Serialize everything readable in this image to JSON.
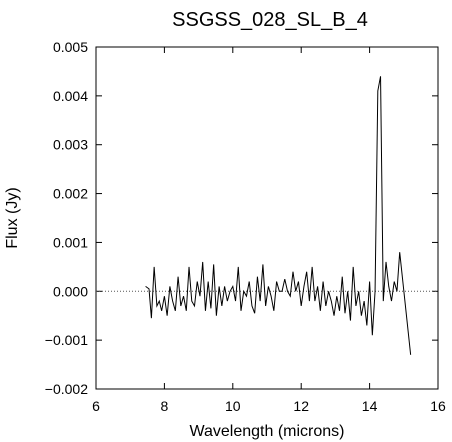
{
  "chart_data": {
    "type": "line",
    "title": "SSGSS_028_SL_B_4",
    "xlabel": "Wavelength (microns)",
    "ylabel": "Flux (Jy)",
    "xlim": [
      6,
      16
    ],
    "ylim": [
      -0.002,
      0.005
    ],
    "xticks": [
      6,
      8,
      10,
      12,
      14,
      16
    ],
    "xtick_labels": [
      "6",
      "8",
      "10",
      "12",
      "14",
      "16"
    ],
    "yticks": [
      -0.002,
      -0.001,
      0.0,
      0.001,
      0.002,
      0.003,
      0.004,
      0.005
    ],
    "ytick_labels": [
      "−0.002",
      "−0.001",
      "0.000",
      "0.001",
      "0.002",
      "0.003",
      "0.004",
      "0.005"
    ],
    "zero_line": {
      "y": 0.0,
      "style": "dotted"
    },
    "grid": false,
    "series": [
      {
        "x": [
          7.45,
          7.55,
          7.62,
          7.7,
          7.78,
          7.85,
          7.92,
          8.0,
          8.08,
          8.16,
          8.24,
          8.32,
          8.4,
          8.48,
          8.56,
          8.64,
          8.72,
          8.8,
          8.88,
          8.96,
          9.04,
          9.12,
          9.2,
          9.28,
          9.36,
          9.44,
          9.52,
          9.6,
          9.68,
          9.76,
          9.84,
          9.92,
          10.0,
          10.08,
          10.16,
          10.24,
          10.32,
          10.4,
          10.48,
          10.56,
          10.64,
          10.72,
          10.8,
          10.88,
          10.96,
          11.04,
          11.12,
          11.2,
          11.28,
          11.36,
          11.44,
          11.52,
          11.6,
          11.68,
          11.76,
          11.84,
          11.92,
          12.0,
          12.08,
          12.16,
          12.24,
          12.32,
          12.4,
          12.48,
          12.56,
          12.64,
          12.72,
          12.8,
          12.88,
          12.96,
          13.04,
          13.12,
          13.2,
          13.28,
          13.36,
          13.44,
          13.52,
          13.6,
          13.68,
          13.76,
          13.84,
          13.92,
          14.0,
          14.08,
          14.16,
          14.24,
          14.32,
          14.4,
          14.48,
          14.56,
          14.64,
          14.72,
          14.8,
          14.88,
          15.2
        ],
        "y": [
          0.0001,
          5e-05,
          -0.00055,
          0.0005,
          -0.0003,
          -0.0002,
          -0.0004,
          -0.0001,
          -0.0005,
          0.0001,
          -0.0002,
          -0.0004,
          0.0003,
          -0.0003,
          -0.0001,
          -0.0004,
          0.0005,
          -0.0002,
          -0.0003,
          0.0002,
          -0.0001,
          0.0006,
          -0.0004,
          0.0002,
          -0.00035,
          0.00055,
          -0.0005,
          0.0001,
          -0.0003,
          0.0001,
          -0.0002,
          0.0,
          0.0001,
          -0.0002,
          0.0005,
          -0.0004,
          0.0,
          -0.0001,
          0.0002,
          -0.0003,
          -0.00045,
          0.0003,
          -0.0002,
          0.00055,
          -0.0003,
          0.0001,
          -0.0001,
          -0.0004,
          0.0002,
          0.0,
          0.0,
          0.00025,
          0.0,
          -0.0001,
          0.0004,
          0.0,
          0.0002,
          -0.0003,
          0.0001,
          0.0004,
          -0.0002,
          0.0005,
          -0.0002,
          0.0001,
          -0.0004,
          0.0002,
          -0.0003,
          0.0,
          -0.0002,
          -0.0005,
          -0.0001,
          -0.0004,
          0.0003,
          -0.00045,
          0.0,
          -0.0006,
          0.0005,
          -0.0003,
          0.0,
          -0.0005,
          -0.0002,
          -0.0007,
          0.0002,
          -0.0009,
          0.0,
          0.0041,
          0.0044,
          -0.0002,
          0.0006,
          0.0001,
          -0.0002,
          0.0002,
          0.0,
          0.0008,
          -0.0013
        ]
      }
    ]
  }
}
